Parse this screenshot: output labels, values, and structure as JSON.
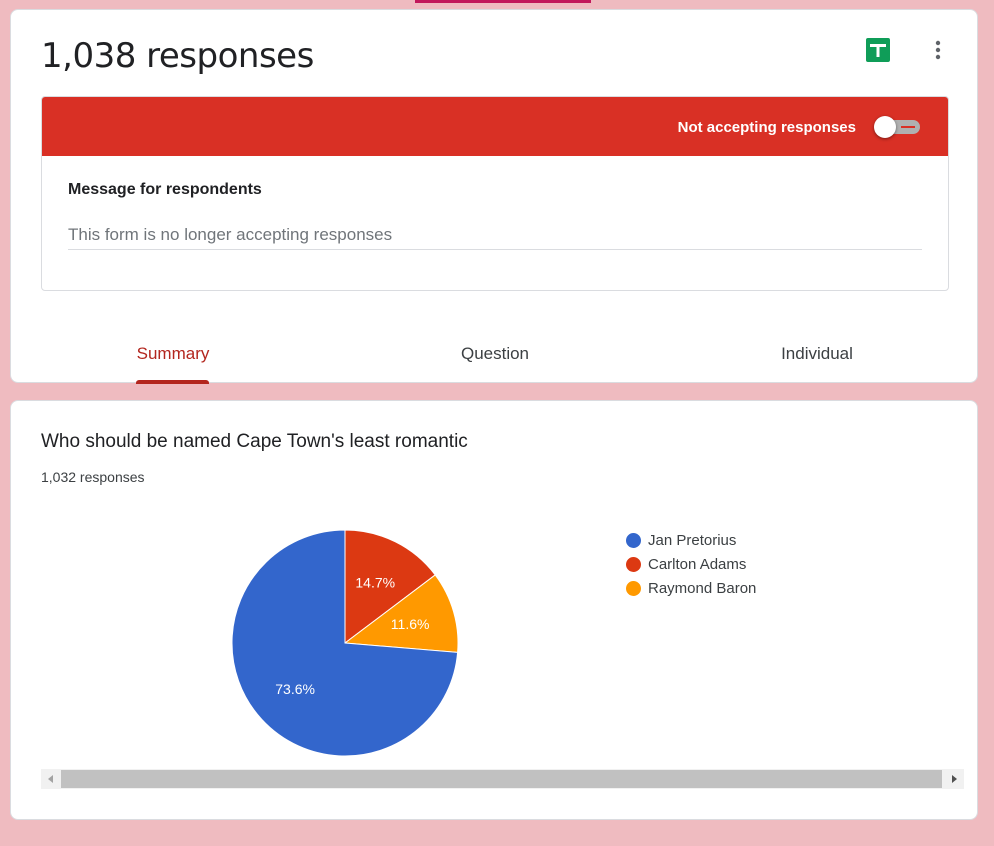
{
  "header": {
    "responses_title": "1,038 responses",
    "sheets_icon": "google-sheets-icon",
    "more_icon": "more-vert-icon"
  },
  "accepting": {
    "label": "Not accepting responses",
    "toggle_on": false,
    "bar_color": "#d93025",
    "message_label": "Message for respondents",
    "message_value": "This form is no longer accepting responses"
  },
  "tabs": [
    {
      "label": "Summary",
      "active": true
    },
    {
      "label": "Question",
      "active": false
    },
    {
      "label": "Individual",
      "active": false
    }
  ],
  "question": {
    "title": "Who should be named Cape Town's least romantic",
    "response_count": "1,032 responses"
  },
  "chart_data": {
    "type": "pie",
    "categories": [
      "Jan Pretorius",
      "Carlton Adams",
      "Raymond Baron"
    ],
    "values": [
      73.6,
      14.7,
      11.6
    ],
    "labels": [
      "73.6%",
      "14.7%",
      "11.6%"
    ],
    "colors": [
      "#3366cc",
      "#dc3912",
      "#ff9900"
    ],
    "legend_position": "right"
  }
}
